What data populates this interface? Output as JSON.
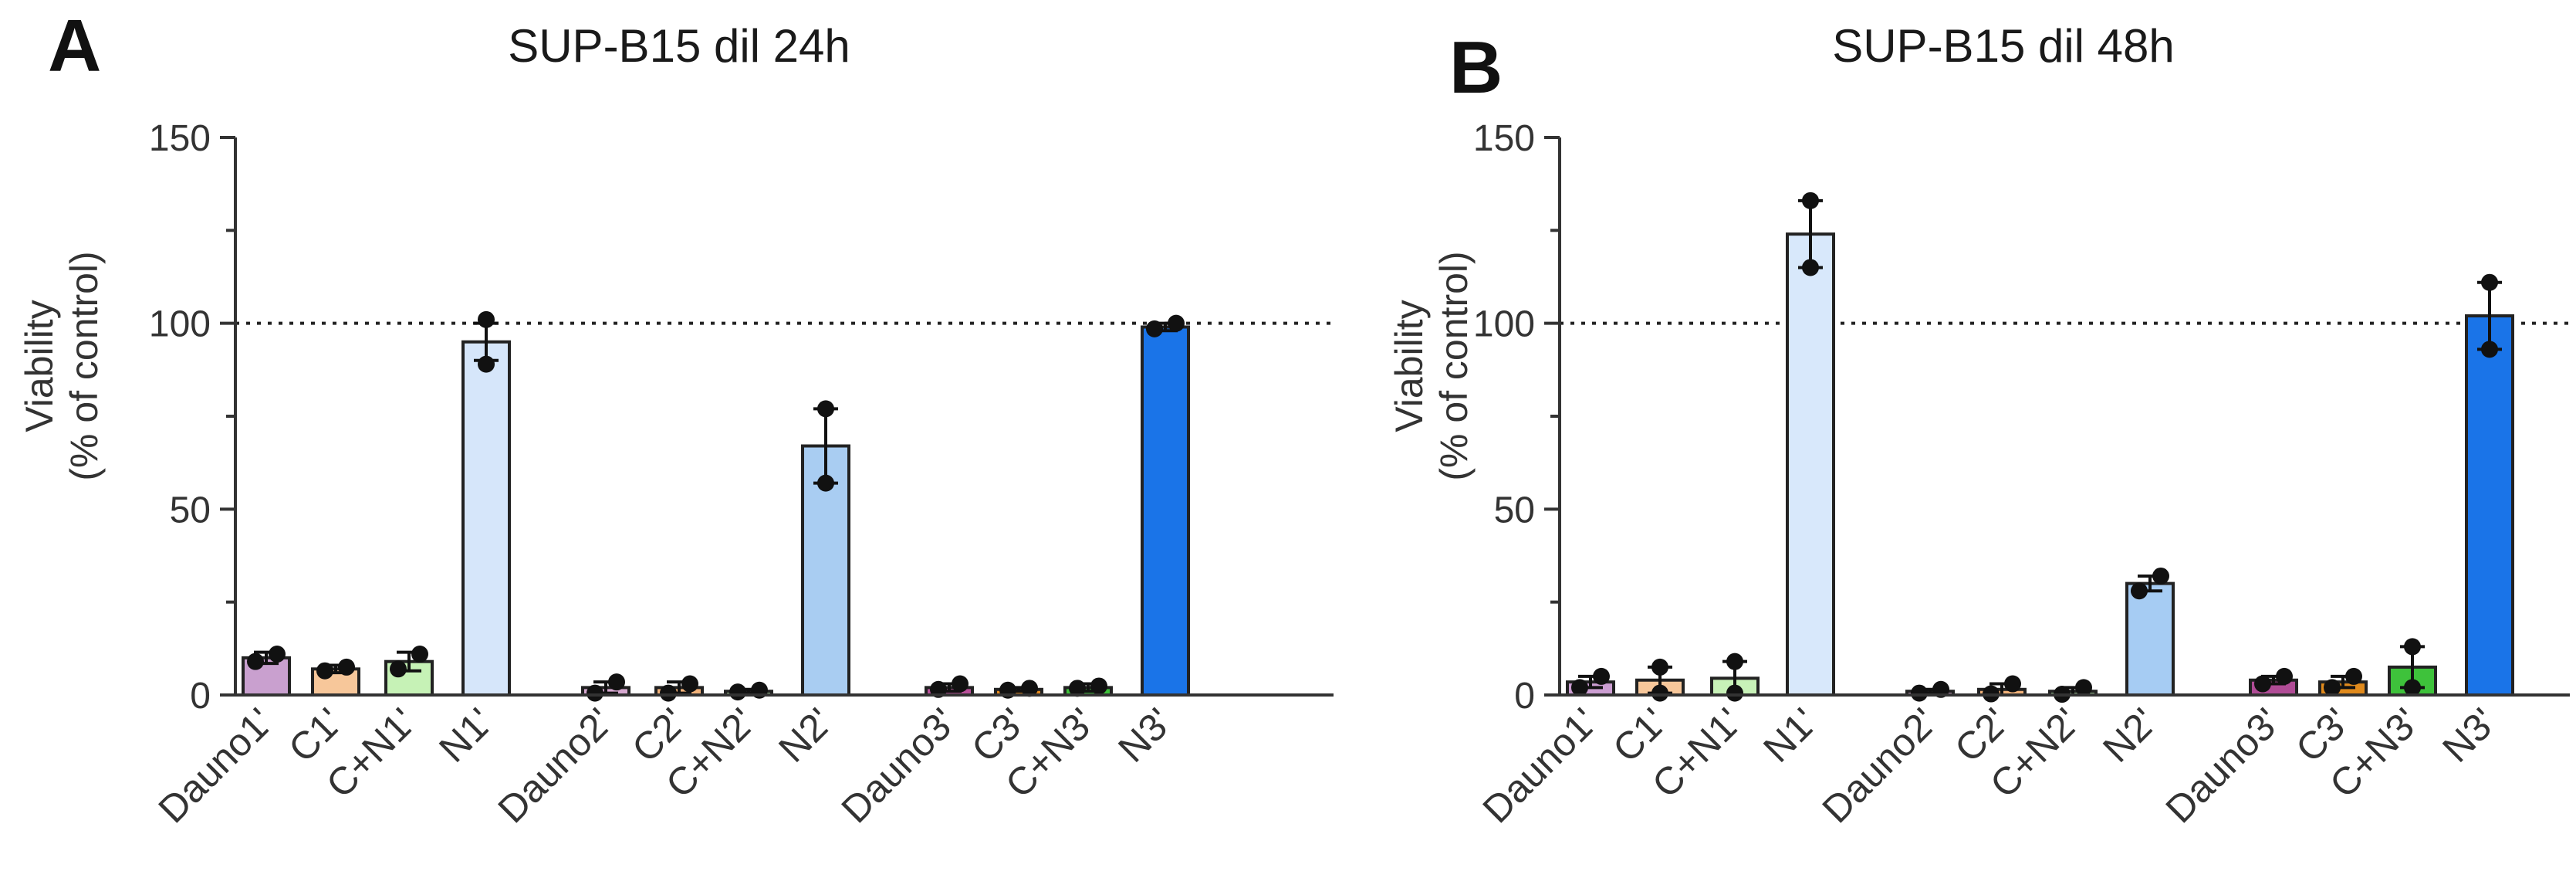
{
  "chart_data": [
    {
      "type": "bar",
      "panel_label": "A",
      "title": "SUP-B15 dil 24h",
      "ylabel_line1": "Viability",
      "ylabel_line2": "(% of control)",
      "ylim": [
        0,
        150
      ],
      "yticks": [
        0,
        50,
        100,
        150
      ],
      "reference_line": 100,
      "categories": [
        "Dauno1'",
        "C1'",
        "C+N1'",
        "N1'",
        "Dauno2'",
        "C2'",
        "C+N2'",
        "N2'",
        "Dauno3'",
        "C3'",
        "C+N3'",
        "N3'"
      ],
      "values": [
        10,
        7,
        9,
        95,
        2,
        2,
        1,
        67,
        2,
        1.5,
        2,
        99
      ],
      "errors": [
        1.5,
        1,
        2.5,
        5,
        1.5,
        1.5,
        0.5,
        10,
        1,
        0.5,
        1,
        1
      ],
      "points": [
        [
          9,
          11
        ],
        [
          6.5,
          7.5
        ],
        [
          7,
          11
        ],
        [
          89,
          101
        ],
        [
          0.5,
          3.5
        ],
        [
          0.5,
          3
        ],
        [
          0.8,
          1.3
        ],
        [
          57,
          77
        ],
        [
          1.5,
          3
        ],
        [
          1.3,
          1.8
        ],
        [
          1.8,
          2.4
        ],
        [
          98.5,
          100
        ]
      ],
      "colors": [
        "#c9a0cf",
        "#f7c79a",
        "#c6f2b6",
        "#d6e6fa",
        "#d6a8d0",
        "#f2b27a",
        "#a9dca1",
        "#a9cdf2",
        "#b9509a",
        "#e58a1e",
        "#3ec23b",
        "#1a74e8"
      ]
    },
    {
      "type": "bar",
      "panel_label": "B",
      "title": "SUP-B15 dil 48h",
      "ylabel_line1": "Viability",
      "ylabel_line2": "(% of control)",
      "ylim": [
        0,
        150
      ],
      "yticks": [
        0,
        50,
        100,
        150
      ],
      "reference_line": 100,
      "categories": [
        "Dauno1'",
        "C1'",
        "C+N1'",
        "N1'",
        "Dauno2'",
        "C2'",
        "C+N2'",
        "N2'",
        "Dauno3'",
        "C3'",
        "C+N3'",
        "N3'"
      ],
      "values": [
        3.5,
        4,
        4.5,
        124,
        1,
        1.5,
        1,
        30,
        4,
        3.5,
        7.5,
        102
      ],
      "errors": [
        1.5,
        3.5,
        4.5,
        9,
        0.5,
        1.5,
        1,
        2,
        1,
        1.5,
        5.5,
        9
      ],
      "points": [
        [
          2,
          5
        ],
        [
          0.5,
          7.5
        ],
        [
          0.5,
          9
        ],
        [
          115,
          133
        ],
        [
          0.5,
          1.5
        ],
        [
          0.3,
          3
        ],
        [
          0.2,
          2
        ],
        [
          28,
          32
        ],
        [
          3,
          5
        ],
        [
          2,
          5
        ],
        [
          2,
          13
        ],
        [
          93,
          111
        ]
      ],
      "colors": [
        "#cc9ed2",
        "#f7c79a",
        "#c8f2b8",
        "#d8e8fb",
        "#d6a8d0",
        "#f2b27a",
        "#a9dca1",
        "#a6ccf3",
        "#b04c96",
        "#e08a1c",
        "#3ec23b",
        "#1a74e8"
      ]
    }
  ]
}
